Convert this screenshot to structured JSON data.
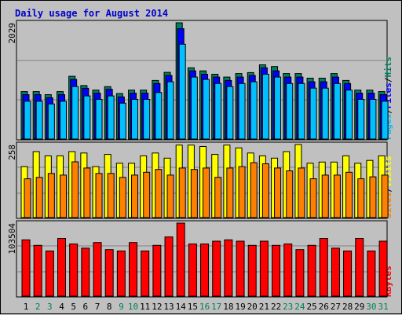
{
  "chart_data": {
    "type": "bar",
    "title": "Daily usage for August 2014",
    "x": [
      "1",
      "2",
      "3",
      "4",
      "5",
      "6",
      "7",
      "8",
      "9",
      "10",
      "11",
      "12",
      "13",
      "14",
      "15",
      "16",
      "17",
      "18",
      "19",
      "20",
      "21",
      "22",
      "23",
      "24",
      "25",
      "26",
      "27",
      "28",
      "29",
      "30",
      "31"
    ],
    "weekend_days": [
      "2",
      "3",
      "9",
      "10",
      "16",
      "17",
      "23",
      "24",
      "30",
      "31"
    ],
    "colors": {
      "hits": "#00805c",
      "files": "#0000ff",
      "pages": "#00c0ff",
      "visits": "#ffff00",
      "sites": "#ff8000",
      "kbytes": "#ff0000",
      "title": "#0000cc",
      "weekday_label": "#000000",
      "weekend_label": "#00805c"
    },
    "panels": [
      {
        "name": "hits_files_pages",
        "max_label": "2029",
        "ymax": 2029,
        "legend": [
          "Pages",
          "/",
          "Files",
          "/",
          "Hits"
        ],
        "series": [
          {
            "name": "Hits",
            "values": [
              828,
              828,
              774,
              828,
              1096,
              934,
              854,
              915,
              794,
              854,
              854,
              1023,
              1164,
              2029,
              1244,
              1190,
              1131,
              1082,
              1143,
              1160,
              1296,
              1265,
              1143,
              1143,
              1062,
              1062,
              1143,
              1023,
              854,
              854,
              828
            ]
          },
          {
            "name": "Files",
            "values": [
              774,
              774,
              720,
              774,
              1041,
              886,
              801,
              868,
              735,
              801,
              801,
              969,
              1109,
              1926,
              1190,
              1131,
              1082,
              1023,
              1082,
              1109,
              1244,
              1190,
              1082,
              1082,
              1000,
              1000,
              1082,
              969,
              801,
              801,
              774
            ]
          },
          {
            "name": "Pages",
            "values": [
              660,
              660,
              613,
              660,
              916,
              752,
              692,
              752,
              627,
              692,
              692,
              812,
              1000,
              1655,
              1082,
              1041,
              969,
              916,
              969,
              1000,
              1131,
              1082,
              969,
              969,
              888,
              888,
              969,
              854,
              692,
              692,
              660
            ]
          }
        ]
      },
      {
        "name": "visits_sites",
        "max_label": "258",
        "ymax": 258,
        "legend": [
          "Sites",
          "/",
          "Visits"
        ],
        "series": [
          {
            "name": "Visits",
            "values": [
              180,
              233,
              218,
              218,
              233,
              228,
              180,
              223,
              192,
              192,
              218,
              228,
              210,
              256,
              256,
              251,
              223,
              256,
              246,
              228,
              218,
              210,
              233,
              258,
              192,
              196,
              196,
              218,
              192,
              202,
              218
            ]
          },
          {
            "name": "Sites",
            "values": [
              137,
              142,
              156,
              150,
              197,
              175,
              156,
              156,
              142,
              150,
              160,
              170,
              150,
              175,
              170,
              175,
              142,
              175,
              180,
              194,
              190,
              175,
              165,
              175,
              137,
              150,
              150,
              160,
              137,
              144,
              150
            ]
          }
        ]
      },
      {
        "name": "kbytes",
        "max_label": "103504",
        "ymax": 103504,
        "legend": [
          "KBytes"
        ],
        "series": [
          {
            "name": "KBytes",
            "values": [
              79838,
              71966,
              63993,
              81842,
              73950,
              67961,
              75970,
              65957,
              63993,
              75970,
              63993,
              71966,
              83961,
              103504,
              73950,
              73950,
              77939,
              79838,
              77939,
              71966,
              77939,
              71966,
              73950,
              65957,
              71966,
              81842,
              67961,
              63993,
              81842,
              63993,
              77939
            ]
          }
        ]
      }
    ]
  }
}
